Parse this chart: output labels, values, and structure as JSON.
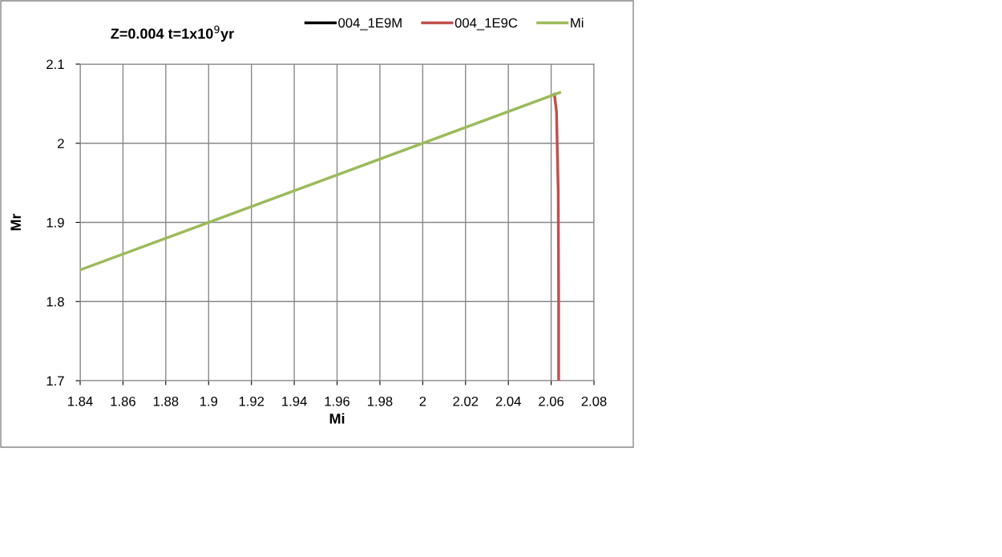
{
  "chart_data": {
    "type": "line",
    "title": "Z=0.004 t=1x10$^{9}$yr",
    "xlabel": "Mi",
    "ylabel": "Mr",
    "xlim": [
      1.84,
      2.08
    ],
    "xticks": [
      1.84,
      1.86,
      1.88,
      1.9,
      1.92,
      1.94,
      1.96,
      1.98,
      2,
      2.02,
      2.04,
      2.06,
      2.08
    ],
    "ylim": [
      1.7,
      2.1
    ],
    "yticks": [
      1.7,
      1.8,
      1.9,
      2,
      2.1
    ],
    "grid": true,
    "legend": "top right",
    "marker": "none",
    "line_style": "solid",
    "series": [
      {
        "name": "004_1E9M",
        "color": "#000000"
      },
      {
        "name": "004_1E9C",
        "color": "#c0504d",
        "x": [
          2.0615,
          2.0625,
          2.0628,
          2.0633,
          2.0635,
          2.0635
        ],
        "values": [
          2.062,
          2.04,
          2.0,
          1.94,
          1.8,
          1.7
        ]
      },
      {
        "name": "Mi",
        "color": "#9bbb59",
        "x": [
          1.84,
          2.064
        ],
        "values": [
          1.84,
          2.064
        ]
      }
    ]
  }
}
